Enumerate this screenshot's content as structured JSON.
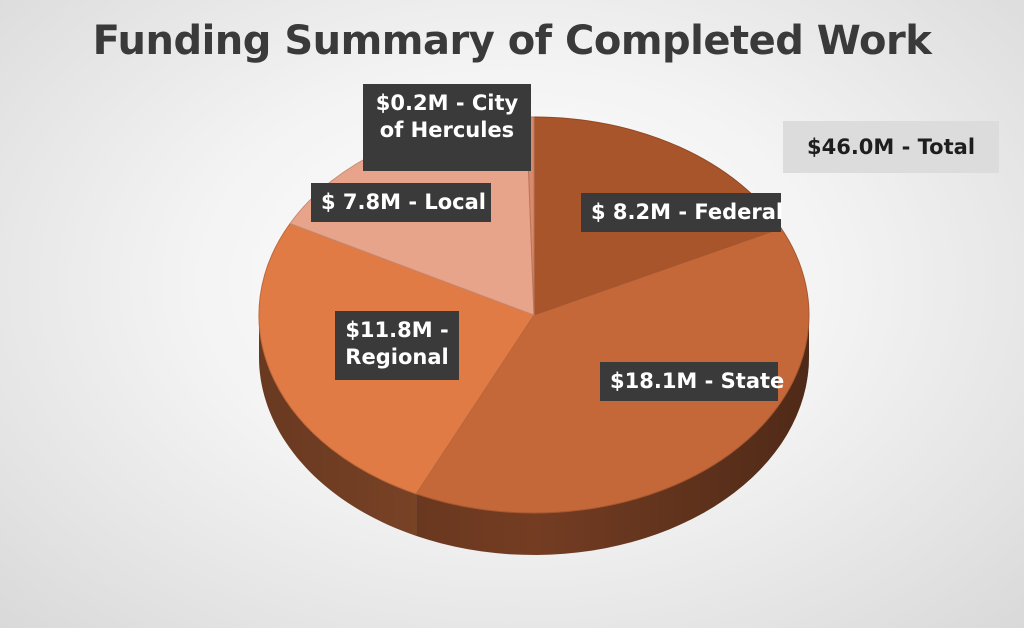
{
  "chart_data": {
    "type": "pie",
    "title": "Funding Summary of Completed Work",
    "unit": "$M",
    "slices": [
      {
        "name": "Federal",
        "value": 8.2,
        "label": "$ 8.2M - Federal",
        "color": "#a9552c"
      },
      {
        "name": "State",
        "value": 18.1,
        "label": "$18.1M - State",
        "color": "#c4683a"
      },
      {
        "name": "Regional",
        "value": 11.8,
        "label": "$11.8M - Regional",
        "color": "#e07b45"
      },
      {
        "name": "Local",
        "value": 7.8,
        "label": "$ 7.8M - Local",
        "color": "#e8a48a"
      },
      {
        "name": "City of Hercules",
        "value": 0.2,
        "label": "$0.2M - City of Hercules",
        "color": "#d98a6a"
      }
    ],
    "total_label": "$46.0M - Total",
    "style": "3d-pie"
  }
}
